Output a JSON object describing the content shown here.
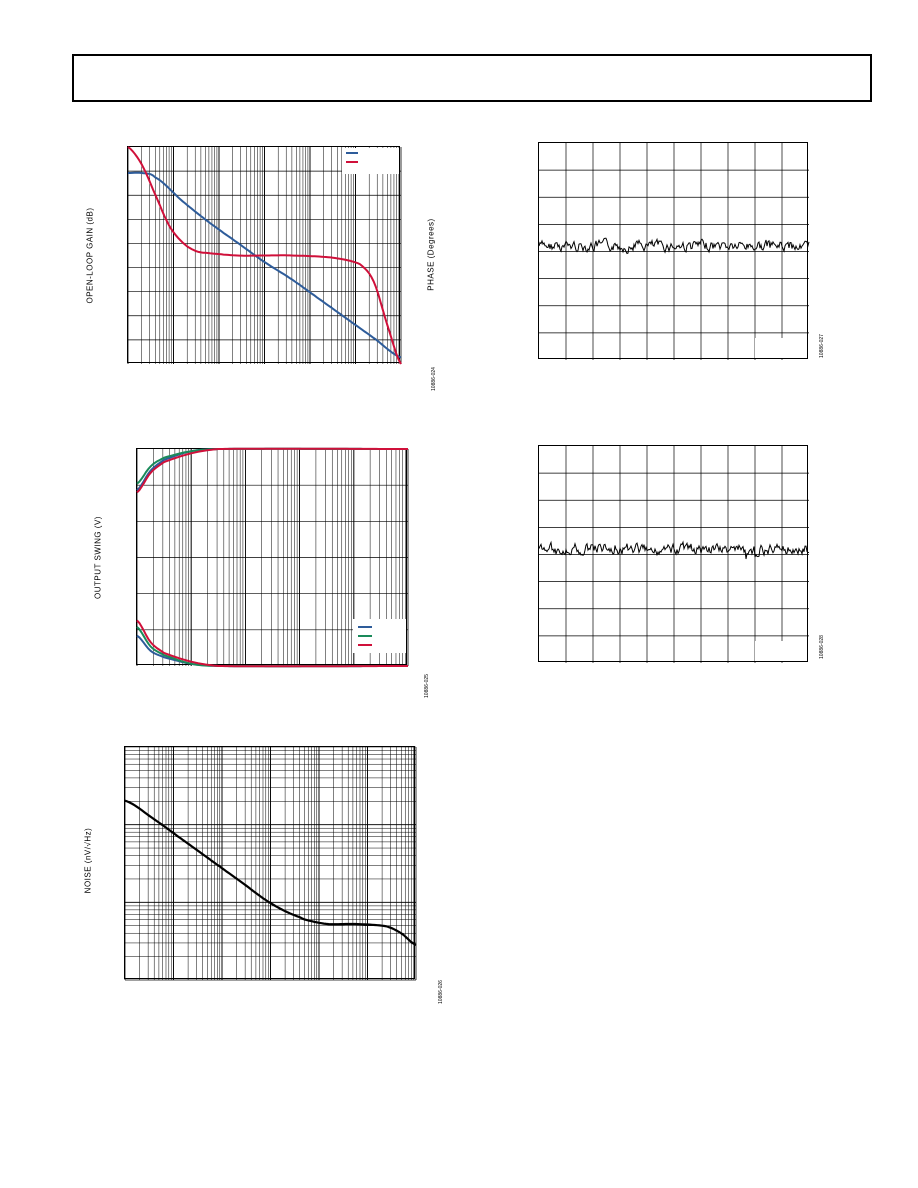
{
  "page": {
    "header_box": "",
    "figures": [
      {
        "id": "open-loop-gain",
        "ylabel": "OPEN-LOOP GAIN (dB)",
        "ylabel_right": "PHASE (Degrees)",
        "fignum": "10886-024",
        "legend": [
          {
            "color": "#2e5c9a"
          },
          {
            "color": "#d0103a"
          }
        ]
      },
      {
        "id": "noise-time-1",
        "ylabel": "",
        "fignum": "10886-027"
      },
      {
        "id": "output-swing",
        "ylabel": "OUTPUT SWING (V)",
        "fignum": "10886-025",
        "legend": [
          {
            "color": "#2e5c9a"
          },
          {
            "color": "#1a8a5a"
          },
          {
            "color": "#d0103a"
          }
        ]
      },
      {
        "id": "noise-time-2",
        "ylabel": "",
        "fignum": "10886-028"
      },
      {
        "id": "noise-density",
        "ylabel": "NOISE (nV/√Hz)",
        "fignum": "10886-026"
      }
    ]
  },
  "chart_data": [
    {
      "type": "line",
      "title": "",
      "xlabel": "",
      "ylabel": "OPEN-LOOP GAIN (dB)",
      "y2label": "PHASE (Degrees)",
      "xscale": "log",
      "grid": true,
      "legend_placement": "top-right",
      "series": [
        {
          "color": "#2e5c9a",
          "x": [
            0,
            0.05,
            0.1,
            0.2,
            0.3,
            0.4,
            0.5,
            0.6,
            0.7,
            0.8,
            0.9,
            1.0
          ],
          "y": [
            0.88,
            0.88,
            0.86,
            0.75,
            0.65,
            0.56,
            0.47,
            0.39,
            0.3,
            0.21,
            0.12,
            0.03
          ]
        },
        {
          "color": "#d0103a",
          "x": [
            0,
            0.05,
            0.1,
            0.15,
            0.2,
            0.25,
            0.3,
            0.4,
            0.5,
            0.6,
            0.75,
            0.85,
            0.9,
            0.95,
            1.0
          ],
          "y": [
            1.0,
            0.92,
            0.78,
            0.64,
            0.56,
            0.52,
            0.51,
            0.5,
            0.5,
            0.5,
            0.49,
            0.46,
            0.38,
            0.18,
            0.0
          ]
        }
      ]
    },
    {
      "type": "line",
      "title": "",
      "xlabel": "",
      "ylabel": "",
      "grid": true,
      "series": [
        {
          "color": "#000000",
          "trace": "noise"
        }
      ]
    },
    {
      "type": "line",
      "title": "",
      "xlabel": "",
      "ylabel": "OUTPUT SWING (V)",
      "xscale": "log",
      "grid": true,
      "legend_placement": "bottom-right",
      "series": [
        {
          "color": "#2e5c9a",
          "x": [
            0,
            0.05,
            0.1,
            0.2,
            0.3,
            1.0
          ],
          "y_high": [
            0.81,
            0.9,
            0.95,
            0.99,
            1.0,
            1.0
          ],
          "y_low": [
            0.14,
            0.07,
            0.04,
            0.01,
            0.0,
            0.0
          ]
        },
        {
          "color": "#1a8a5a",
          "x": [
            0,
            0.05,
            0.1,
            0.2,
            0.3,
            1.0
          ],
          "y_high": [
            0.84,
            0.92,
            0.96,
            0.99,
            1.0,
            1.0
          ],
          "y_low": [
            0.18,
            0.09,
            0.05,
            0.01,
            0.0,
            0.0
          ]
        },
        {
          "color": "#d0103a",
          "x": [
            0,
            0.05,
            0.1,
            0.2,
            0.3,
            1.0
          ],
          "y_high": [
            0.8,
            0.89,
            0.94,
            0.98,
            1.0,
            1.0
          ],
          "y_low": [
            0.21,
            0.11,
            0.06,
            0.02,
            0.0,
            0.0
          ]
        }
      ]
    },
    {
      "type": "line",
      "title": "",
      "xlabel": "",
      "ylabel": "",
      "grid": true,
      "series": [
        {
          "color": "#000000",
          "trace": "noise"
        }
      ]
    },
    {
      "type": "line",
      "title": "",
      "xlabel": "",
      "ylabel": "NOISE (nV/√Hz)",
      "xscale": "log",
      "yscale": "log",
      "grid": true,
      "series": [
        {
          "color": "#000000",
          "x": [
            0,
            0.1,
            0.2,
            0.3,
            0.4,
            0.5,
            0.6,
            0.65,
            0.7,
            0.8,
            0.9,
            0.95,
            1.0
          ],
          "y": [
            0.77,
            0.69,
            0.6,
            0.51,
            0.42,
            0.33,
            0.27,
            0.25,
            0.24,
            0.24,
            0.23,
            0.2,
            0.15
          ]
        }
      ]
    }
  ]
}
